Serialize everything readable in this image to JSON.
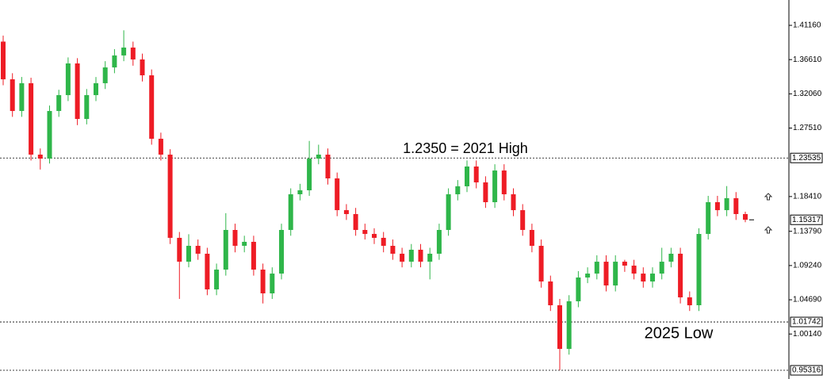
{
  "chart_data": {
    "type": "candlestick",
    "up_color": "#2fb64a",
    "down_color": "#ee1c25",
    "ylim": [
      0.9416,
      1.4453
    ],
    "yticks": [
      {
        "value": 1.4116,
        "label": "1.41160"
      },
      {
        "value": 1.3661,
        "label": "1.36610"
      },
      {
        "value": 1.3206,
        "label": "1.32060"
      },
      {
        "value": 1.2751,
        "label": "1.27510"
      },
      {
        "value": 1.1841,
        "label": "1.18410"
      },
      {
        "value": 1.1379,
        "label": "1.13790"
      },
      {
        "value": 1.0924,
        "label": "1.09240"
      },
      {
        "value": 1.0469,
        "label": "1.04690"
      },
      {
        "value": 1.0014,
        "label": "1.00140"
      }
    ],
    "levels": [
      {
        "value": 1.23535,
        "label": "1.23535"
      },
      {
        "value": 1.01742,
        "label": "1.01742"
      },
      {
        "value": 0.95316,
        "label": "0.95316"
      }
    ],
    "current_price": {
      "value": 1.15317,
      "label": "1.15317"
    },
    "annotations": [
      {
        "text": "1.2350 = 2021 High"
      },
      {
        "text": "2025 Low"
      }
    ],
    "open": [
      1.39,
      1.3399,
      1.2978,
      1.3347,
      1.2398,
      1.2345,
      1.2978,
      1.3189,
      1.361,
      1.2872,
      1.3189,
      1.3347,
      1.3557,
      1.3716,
      1.3821,
      1.3663,
      1.3452,
      1.2609,
      1.2398,
      1.1292,
      1.0975,
      1.1186,
      1.1081,
      1.0607,
      1.087,
      1.1397,
      1.1186,
      1.1239,
      1.087,
      1.0554,
      1.0817,
      1.1397,
      1.1871,
      1.1924,
      1.2345,
      1.2398,
      1.2082,
      1.166,
      1.1608,
      1.1397,
      1.1344,
      1.1292,
      1.1186,
      1.1081,
      1.0975,
      1.1134,
      1.0975,
      1.1081,
      1.1397,
      1.1871,
      1.1977,
      1.224,
      1.2029,
      1.1766,
      1.2187,
      1.1871,
      1.166,
      1.1397,
      1.1186,
      1.0712,
      1.0396,
      0.9816,
      1.0449,
      1.0765,
      1.0817,
      1.0975,
      1.0659,
      1.0975,
      1.0923,
      1.0817,
      1.0712,
      1.0817,
      1.0975,
      1.1081,
      1.0501,
      1.0396,
      1.1344,
      1.1766,
      1.166,
      1.1819,
      1.1608
    ],
    "high": [
      1.398,
      1.348,
      1.343,
      1.342,
      1.248,
      1.305,
      1.326,
      1.369,
      1.368,
      1.327,
      1.343,
      1.364,
      1.38,
      1.405,
      1.39,
      1.374,
      1.353,
      1.269,
      1.247,
      1.137,
      1.134,
      1.127,
      1.116,
      1.095,
      1.162,
      1.148,
      1.132,
      1.132,
      1.095,
      1.09,
      1.148,
      1.195,
      1.201,
      1.258,
      1.253,
      1.248,
      1.216,
      1.174,
      1.169,
      1.148,
      1.142,
      1.137,
      1.127,
      1.116,
      1.121,
      1.121,
      1.116,
      1.148,
      1.195,
      1.206,
      1.232,
      1.232,
      1.211,
      1.227,
      1.227,
      1.195,
      1.174,
      1.148,
      1.127,
      1.079,
      1.048,
      1.053,
      1.085,
      1.09,
      1.106,
      1.106,
      1.106,
      1.1,
      1.1,
      1.09,
      1.09,
      1.116,
      1.116,
      1.116,
      1.058,
      1.142,
      1.185,
      1.185,
      1.198,
      1.19,
      1.164
    ],
    "low": [
      1.332,
      1.29,
      1.29,
      1.232,
      1.22,
      1.228,
      1.29,
      1.311,
      1.279,
      1.28,
      1.311,
      1.327,
      1.348,
      1.364,
      1.358,
      1.337,
      1.253,
      1.232,
      1.121,
      1.048,
      1.09,
      1.1,
      1.053,
      1.053,
      1.079,
      1.11,
      1.11,
      1.079,
      1.042,
      1.048,
      1.074,
      1.132,
      1.179,
      1.185,
      1.227,
      1.2,
      1.158,
      1.153,
      1.132,
      1.127,
      1.121,
      1.11,
      1.1,
      1.09,
      1.09,
      1.09,
      1.074,
      1.1,
      1.132,
      1.179,
      1.19,
      1.195,
      1.169,
      1.169,
      1.179,
      1.158,
      1.132,
      1.11,
      1.063,
      1.032,
      0.9532,
      0.974,
      1.037,
      1.069,
      1.074,
      1.058,
      1.058,
      1.084,
      1.074,
      1.063,
      1.063,
      1.074,
      1.09,
      1.042,
      1.032,
      1.032,
      1.127,
      1.158,
      1.158,
      1.153,
      1.15
    ],
    "close": [
      1.3399,
      1.2978,
      1.3347,
      1.2398,
      1.2345,
      1.2978,
      1.3189,
      1.361,
      1.2872,
      1.3189,
      1.3347,
      1.3557,
      1.3716,
      1.3821,
      1.3663,
      1.3452,
      1.2609,
      1.2398,
      1.1292,
      1.0975,
      1.1186,
      1.1081,
      1.0607,
      1.087,
      1.1397,
      1.1186,
      1.1239,
      1.087,
      1.0554,
      1.0817,
      1.1397,
      1.1871,
      1.1924,
      1.2345,
      1.2398,
      1.2082,
      1.166,
      1.1608,
      1.1397,
      1.1344,
      1.1292,
      1.1186,
      1.1081,
      1.0975,
      1.1134,
      1.0975,
      1.1081,
      1.1397,
      1.1871,
      1.1977,
      1.224,
      1.2029,
      1.1766,
      1.2187,
      1.1871,
      1.166,
      1.1397,
      1.1186,
      1.0712,
      1.0396,
      0.9816,
      1.0449,
      1.0765,
      1.0817,
      1.0975,
      1.0659,
      1.0975,
      1.0923,
      1.0817,
      1.0712,
      1.0817,
      1.0975,
      1.1081,
      1.0501,
      1.0396,
      1.1344,
      1.1766,
      1.166,
      1.1819,
      1.1608,
      1.1532
    ]
  }
}
